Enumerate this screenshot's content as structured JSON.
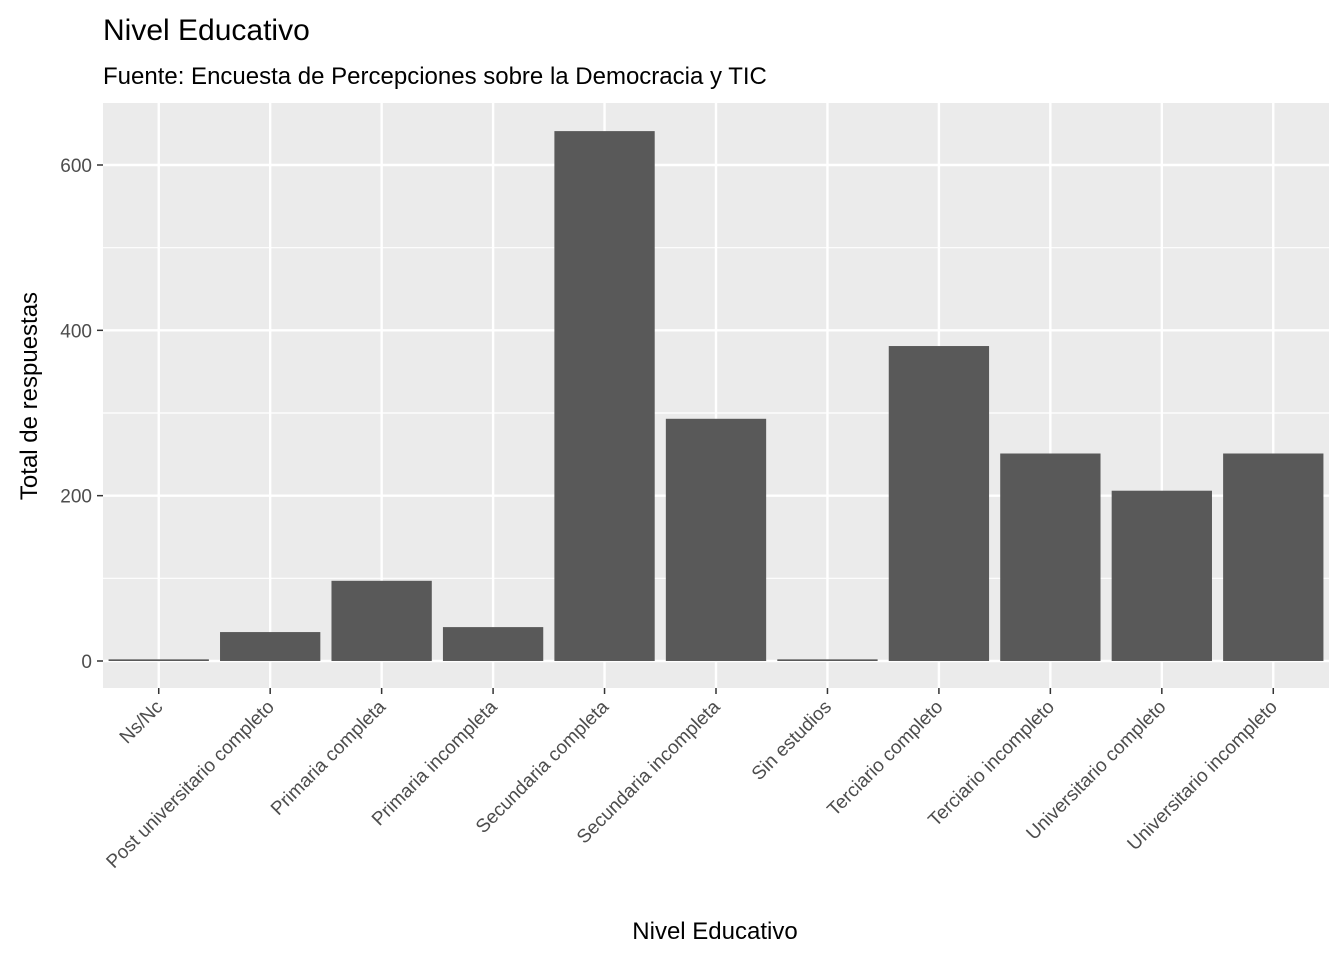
{
  "chart_data": {
    "type": "bar",
    "title": "Nivel Educativo",
    "subtitle": "Fuente: Encuesta de Percepciones sobre la Democracia y TIC",
    "xlabel": "Nivel Educativo",
    "ylabel": "Total de respuestas",
    "categories": [
      "Ns/Nc",
      "Post universitario completo",
      "Primaria completa",
      "Primaria incompleta",
      "Secundaria completa",
      "Secundaria incompleta",
      "Sin estudios",
      "Terciario completo",
      "Terciario incompleto",
      "Universitario completo",
      "Universitario incompleto"
    ],
    "values": [
      2,
      35,
      97,
      41,
      641,
      293,
      2,
      381,
      251,
      206,
      251
    ],
    "ylim": [
      -20,
      672
    ],
    "yticks": [
      0,
      200,
      400,
      600
    ],
    "ytick_labels": [
      "0",
      "200",
      "400",
      "600"
    ],
    "grid": true,
    "legend": "none",
    "colors": {
      "bar": "#595959",
      "panel": "#ebebeb",
      "grid": "#ffffff",
      "tick_text": "#4d4d4d",
      "tick_mark": "#333333"
    }
  }
}
